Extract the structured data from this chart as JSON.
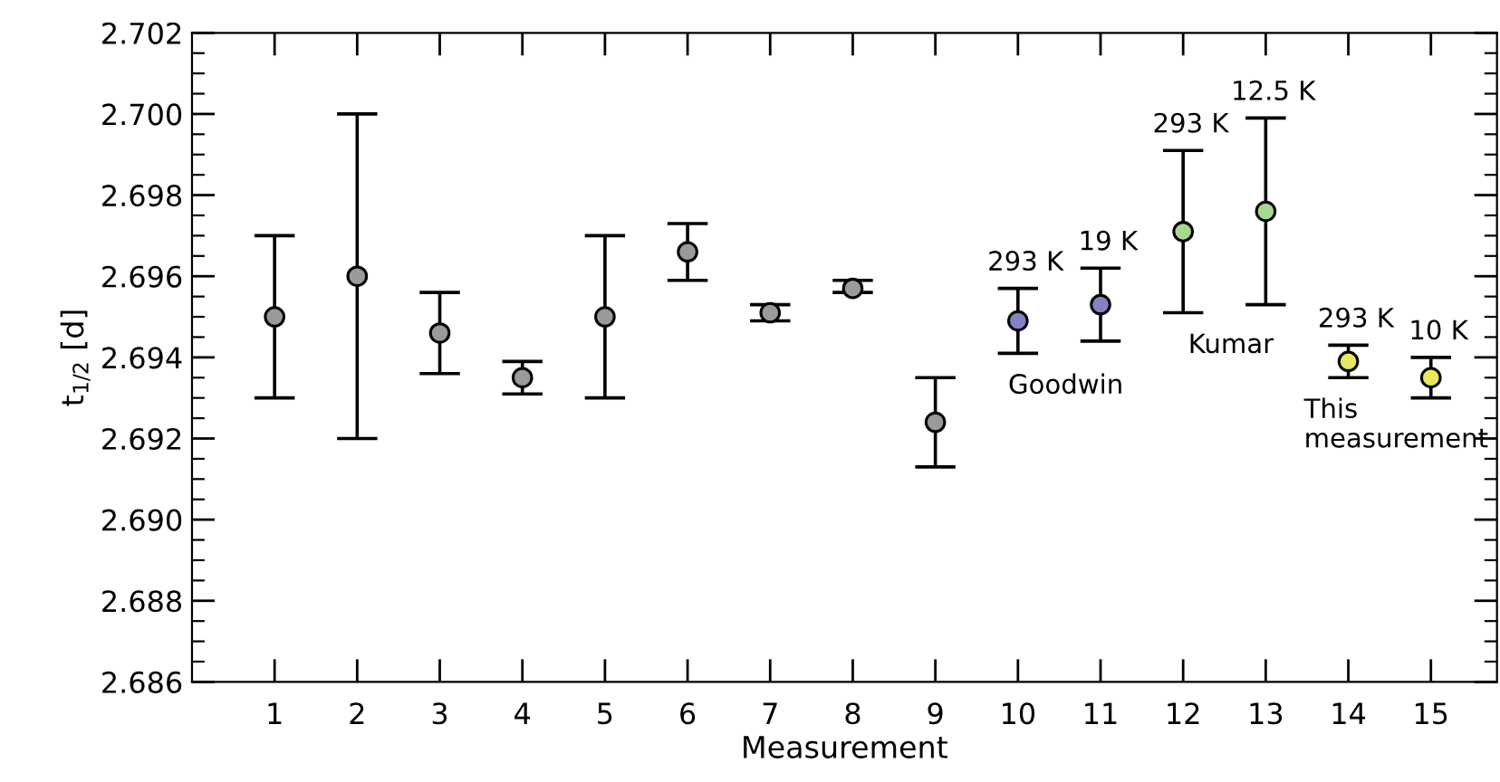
{
  "chart_data": {
    "type": "scatter",
    "xlabel": "Measurement",
    "ylabel": "t$_{1/2}$ [d]",
    "x": [
      1,
      2,
      3,
      4,
      5,
      6,
      7,
      8,
      9,
      10,
      11,
      12,
      13,
      14,
      15
    ],
    "values": [
      2.695,
      2.696,
      2.6946,
      2.6935,
      2.695,
      2.6966,
      2.6951,
      2.6957,
      2.6924,
      2.6949,
      2.6953,
      2.6971,
      2.6976,
      2.6939,
      2.6935
    ],
    "errors": [
      [
        2.693,
        2.697
      ],
      [
        2.692,
        2.7
      ],
      [
        2.6936,
        2.6956
      ],
      [
        2.6931,
        2.6939
      ],
      [
        2.693,
        2.697
      ],
      [
        2.6959,
        2.6973
      ],
      [
        2.6949,
        2.6953
      ],
      [
        2.6956,
        2.6959
      ],
      [
        2.6913,
        2.6935
      ],
      [
        2.6941,
        2.6957
      ],
      [
        2.6944,
        2.6962
      ],
      [
        2.6951,
        2.6991
      ],
      [
        2.6953,
        2.6999
      ],
      [
        2.6935,
        2.6943
      ],
      [
        2.693,
        2.694
      ]
    ],
    "colors": [
      "#9a9a9a",
      "#9a9a9a",
      "#9a9a9a",
      "#9a9a9a",
      "#9a9a9a",
      "#9a9a9a",
      "#9a9a9a",
      "#9a9a9a",
      "#9a9a9a",
      "#8282c4",
      "#8282c4",
      "#a8d890",
      "#a8d890",
      "#e8e860",
      "#e8e860"
    ],
    "marker": "circle",
    "xlim": [
      0,
      15.8
    ],
    "xticks": [
      1,
      2,
      3,
      4,
      5,
      6,
      7,
      8,
      9,
      10,
      11,
      12,
      13,
      14,
      15
    ],
    "ylim": [
      2.686,
      2.702
    ],
    "yticks": [
      2.686,
      2.688,
      {
        "value": 2.69,
        "label": "2.690"
      },
      2.692,
      2.694,
      2.696,
      2.698,
      {
        "value": 2.7,
        "label": "2.700"
      },
      2.702
    ],
    "grid": false,
    "legend": false,
    "annotations": [
      {
        "text": "293 K",
        "x": 10,
        "y": 2.6957
      },
      {
        "text": "19 K",
        "x": 11,
        "y": 2.6962
      },
      {
        "text": "293 K",
        "x": 12,
        "y": 2.6991
      },
      {
        "text": "12.5 K",
        "x": 13,
        "y": 2.6999
      },
      {
        "text": "293 K",
        "x": 14,
        "y": 2.6943
      },
      {
        "text": "10 K",
        "x": 15,
        "y": 2.694
      },
      {
        "text": "Goodwin",
        "x": 10,
        "y": 2.6941
      },
      {
        "text": "Kumar",
        "x": 12,
        "y": 2.6951
      },
      {
        "text": "This\nmeasurement",
        "x": 14,
        "y": 2.6935
      }
    ]
  }
}
